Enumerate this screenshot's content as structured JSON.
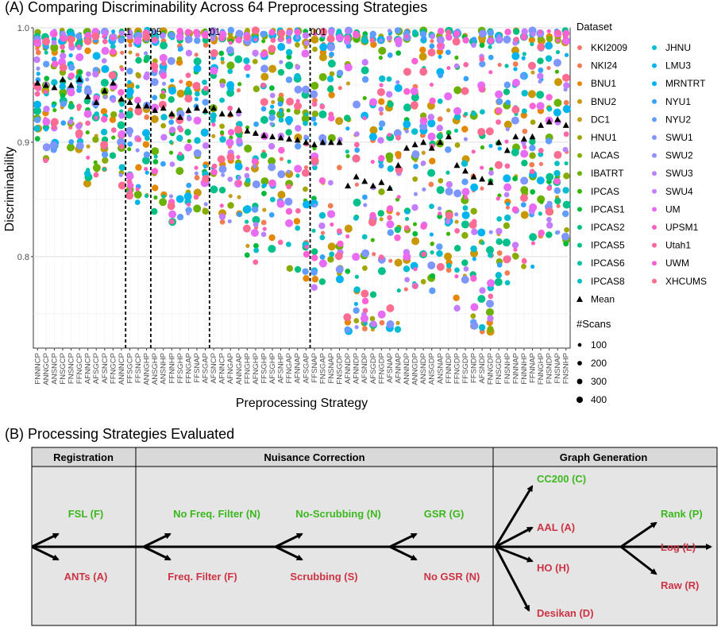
{
  "panel_a": {
    "title": "(A) Comparing Discriminability Across 64 Preprocessing Strategies"
  },
  "panel_b": {
    "title": "(B) Processing Strategies Evaluated",
    "headers": [
      "Registration",
      "Nuisance Correction",
      "Graph Generation"
    ],
    "registration": [
      {
        "label": "FSL (F)",
        "color": "#3cb81e"
      },
      {
        "label": "ANTs (A)",
        "color": "#cc3344"
      }
    ],
    "frequency": [
      {
        "label": "No Freq. Filter (N)",
        "color": "#3cb81e"
      },
      {
        "label": "Freq. Filter (F)",
        "color": "#cc3344"
      }
    ],
    "scrubbing": [
      {
        "label": "No-Scrubbing (N)",
        "color": "#3cb81e"
      },
      {
        "label": "Scrubbing (S)",
        "color": "#cc3344"
      }
    ],
    "gsr": [
      {
        "label": "GSR (G)",
        "color": "#3cb81e"
      },
      {
        "label": "No GSR (N)",
        "color": "#cc3344"
      }
    ],
    "parcellation": [
      {
        "label": "CC200 (C)",
        "color": "#3cb81e"
      },
      {
        "label": "AAL (A)",
        "color": "#cc3344"
      },
      {
        "label": "HO (H)",
        "color": "#cc3344"
      },
      {
        "label": "Desikan (D)",
        "color": "#cc3344"
      }
    ],
    "edge": [
      {
        "label": "Rank (P)",
        "color": "#3cb81e"
      },
      {
        "label": "Log (L)",
        "color": "#cc3344"
      },
      {
        "label": "Raw (R)",
        "color": "#cc3344"
      }
    ]
  },
  "chart_data": {
    "type": "scatter",
    "title": "(A) Comparing Discriminability Across 64 Preprocessing Strategies",
    "xlabel": "Preprocessing Strategy",
    "ylabel": "Discriminability",
    "ylim": [
      0.72,
      1.0
    ],
    "yticks": [
      0.8,
      0.9,
      1.0
    ],
    "ytick_labels": [
      "0.8",
      "0.9",
      "1.0"
    ],
    "categories": [
      "FNNNCP",
      "ANNGCP",
      "ANSNCP",
      "FNSGCP",
      "FNSNCP",
      "FFNGCP",
      "AFNNCP",
      "AFSGCP",
      "AFSNCP",
      "FFNGCP",
      "ANNNCP",
      "FFSGCP",
      "FFSNCP",
      "ANNGHP",
      "ANSGHP",
      "ANSNHP",
      "FFNNHP",
      "FFSGHP",
      "FFNGAP",
      "FFSNAP",
      "AFSGAP",
      "AFSNCP",
      "AFNNCP",
      "AFNGAP",
      "ANNGAP",
      "FFNGHP",
      "AFNGHP",
      "FFSGHP",
      "AFSGHP",
      "AFSNHP",
      "FFNGAP",
      "AFNNAP",
      "AFSGAP",
      "FFSNAP",
      "FNSGAP",
      "FNSNAP",
      "FNSGDP",
      "AFNNDP",
      "AFNNDP",
      "AFSNDP",
      "AFSGDP",
      "FFNGDP",
      "AFSNAP",
      "AFNNAP",
      "ANNNDP",
      "ANNGDP",
      "ANSNDP",
      "ANSGDP",
      "ANSNAP",
      "FFNNDP",
      "FFNGDP",
      "FFSGDP",
      "FFSNDP",
      "AFSNDP",
      "FNNGDP",
      "FNSGDP",
      "FNSNHP",
      "FNNNAP",
      "FNNNHP",
      "FFNNAP",
      "FNNGHP",
      "FNSNDP",
      "FNSNAP",
      "FNSNHP"
    ],
    "mean": [
      0.952,
      0.95,
      0.948,
      0.955,
      0.95,
      0.955,
      0.94,
      0.935,
      0.945,
      0.952,
      0.938,
      0.935,
      0.932,
      0.932,
      0.928,
      0.93,
      0.925,
      0.922,
      0.928,
      0.93,
      0.928,
      0.93,
      0.925,
      0.925,
      0.928,
      0.91,
      0.908,
      0.906,
      0.905,
      0.904,
      0.903,
      0.902,
      0.9,
      0.898,
      0.9,
      0.9,
      0.9,
      0.862,
      0.87,
      0.866,
      0.862,
      0.865,
      0.86,
      0.88,
      0.895,
      0.898,
      0.9,
      0.895,
      0.9,
      0.905,
      0.88,
      0.875,
      0.87,
      0.868,
      0.865,
      0.9,
      0.893,
      0.905,
      0.903,
      0.905,
      0.915,
      0.918,
      0.92,
      0.915
    ],
    "significance_lines": [
      {
        "label": ".1",
        "after_index": 10
      },
      {
        "label": ".05",
        "after_index": 13
      },
      {
        "label": ".01",
        "after_index": 20
      },
      {
        "label": ".001",
        "after_index": 32
      }
    ],
    "legend_dataset_title": "Dataset",
    "datasets": [
      {
        "name": "KKI2009",
        "color": "#f8766d"
      },
      {
        "name": "NKI24",
        "color": "#f17d50"
      },
      {
        "name": "BNU1",
        "color": "#e58700"
      },
      {
        "name": "BNU2",
        "color": "#c99800"
      },
      {
        "name": "DC1",
        "color": "#c69e20"
      },
      {
        "name": "HNU1",
        "color": "#a3a500"
      },
      {
        "name": "IACAS",
        "color": "#86ac00"
      },
      {
        "name": "IBATRT",
        "color": "#6bb100"
      },
      {
        "name": "IPCAS",
        "color": "#39b600"
      },
      {
        "name": "IPCAS1",
        "color": "#00ba38"
      },
      {
        "name": "IPCAS2",
        "color": "#00bf7d"
      },
      {
        "name": "IPCAS5",
        "color": "#00c08b"
      },
      {
        "name": "IPCAS6",
        "color": "#00c1a3"
      },
      {
        "name": "IPCAS8",
        "color": "#00bfc4"
      },
      {
        "name": "JHNU",
        "color": "#00bcd0"
      },
      {
        "name": "LMU3",
        "color": "#00b4ef"
      },
      {
        "name": "MRNTRT",
        "color": "#00b0f6"
      },
      {
        "name": "NYU1",
        "color": "#35a2ff"
      },
      {
        "name": "NYU2",
        "color": "#619cff"
      },
      {
        "name": "SWU1",
        "color": "#7f96ff"
      },
      {
        "name": "SWU2",
        "color": "#9590ff"
      },
      {
        "name": "SWU3",
        "color": "#b983ff"
      },
      {
        "name": "SWU4",
        "color": "#c77cff"
      },
      {
        "name": "UM",
        "color": "#e76bf3"
      },
      {
        "name": "UPSM1",
        "color": "#ff61c3"
      },
      {
        "name": "Utah1",
        "color": "#ff67a4"
      },
      {
        "name": "UWM",
        "color": "#fc61d5"
      },
      {
        "name": "XHCUMS",
        "color": "#ff6c91"
      }
    ],
    "mean_label": "Mean",
    "legend_size_title": "#Scans",
    "size_breaks": [
      100,
      200,
      300,
      400
    ]
  }
}
